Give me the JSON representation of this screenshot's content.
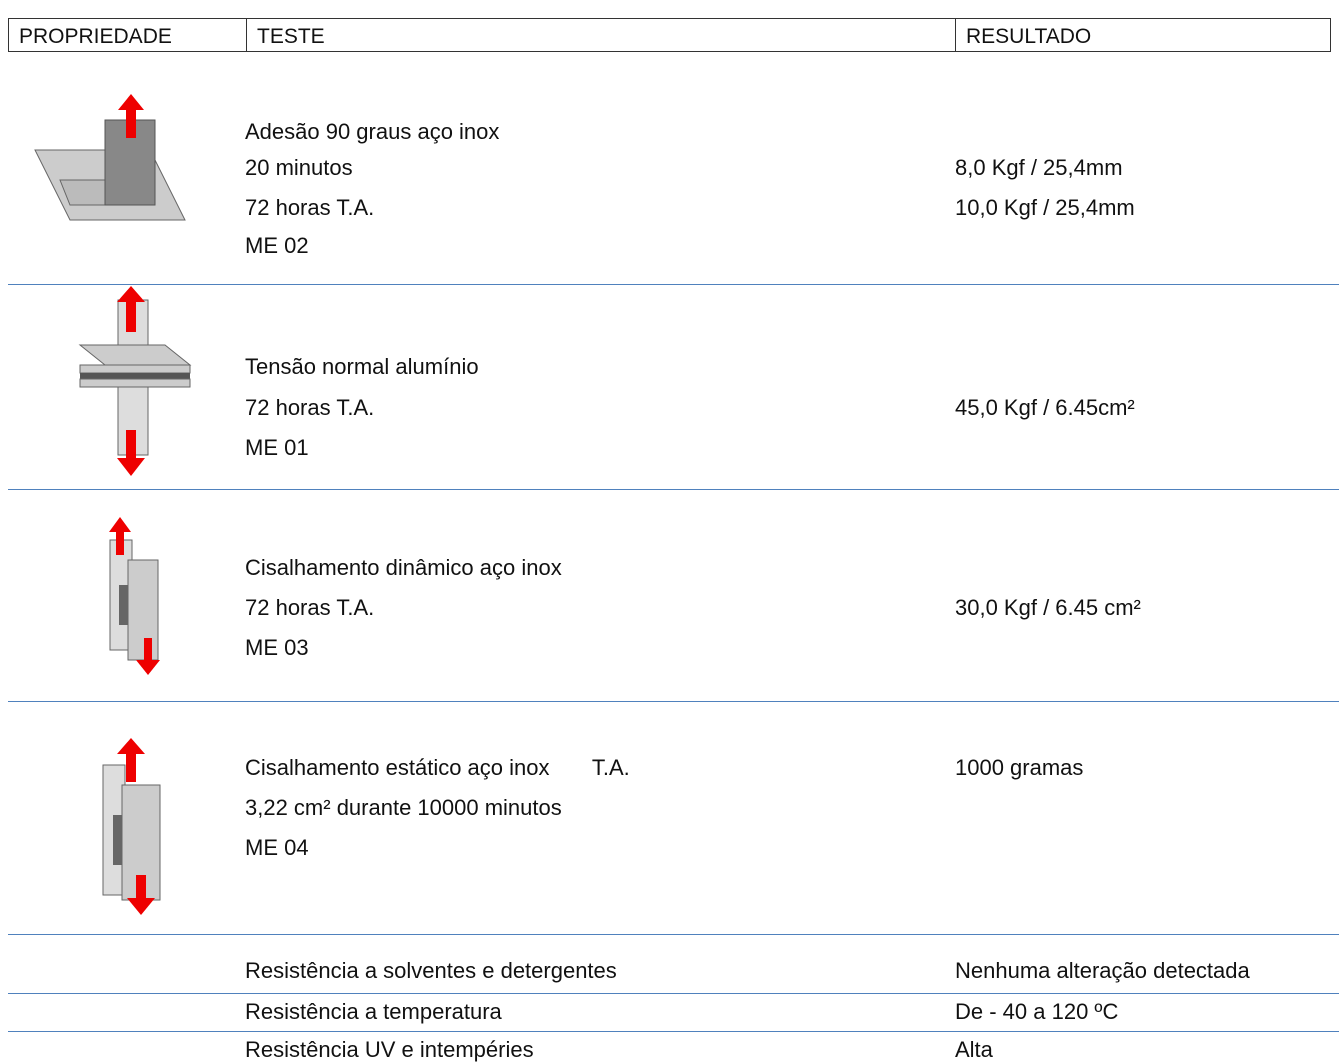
{
  "header": {
    "columns": [
      "PROPRIEDADE",
      "TESTE",
      "RESULTADO"
    ]
  },
  "rows": [
    {
      "test": [
        "Adesão 90 graus aço inox",
        "20 minutos",
        "72 horas T.A.",
        "ME 02"
      ],
      "result": [
        "8,0 Kgf / 25,4mm",
        "10,0 Kgf / 25,4mm"
      ]
    },
    {
      "test": [
        "Tensão normal alumínio",
        "72 horas T.A.",
        "ME 01"
      ],
      "result": [
        "45,0 Kgf / 6.45cm²"
      ]
    },
    {
      "test": [
        "Cisalhamento dinâmico aço inox",
        "72 horas T.A.",
        "ME 03"
      ],
      "result": [
        "30,0 Kgf / 6.45 cm²"
      ]
    },
    {
      "test": [
        "Cisalhamento estático aço inox       T.A.",
        "3,22 cm² durante 10000 minutos",
        "ME 04"
      ],
      "result": [
        "1000 gramas"
      ]
    },
    {
      "test": [
        "Resistência a solventes e detergentes"
      ],
      "result": [
        "Nenhuma alteração detectada"
      ]
    },
    {
      "test": [
        "Resistência a temperatura"
      ],
      "result": [
        "De - 40 a 120 ºC"
      ]
    },
    {
      "test": [
        "Resistência UV e intempéries"
      ],
      "result": [
        "Alta"
      ]
    }
  ]
}
